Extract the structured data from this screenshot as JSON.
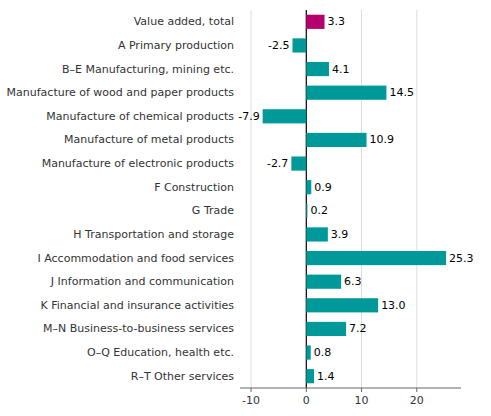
{
  "chart_data": {
    "type": "bar",
    "orientation": "horizontal",
    "categories": [
      "Value added, total",
      "A Primary production",
      "B–E Manufacturing, mining etc.",
      "Manufacture of wood and paper products",
      "Manufacture of chemical products",
      "Manufacture of metal products",
      "Manufacture of electronic products",
      "F Construction",
      "G Trade",
      "H Transportation and storage",
      "I Accommodation and food services",
      "J Information and communication",
      "K Financial and insurance activities",
      "M–N Business-to-business services",
      "O–Q Education, health etc.",
      "R–T Other services"
    ],
    "values": [
      3.3,
      -2.5,
      4.1,
      14.5,
      -7.9,
      10.9,
      -2.7,
      0.9,
      0.2,
      3.9,
      25.3,
      6.3,
      13.0,
      7.2,
      0.8,
      1.4
    ],
    "value_labels": [
      "3.3",
      "-2.5",
      "4.1",
      "14.5",
      "-7.9",
      "10.9",
      "-2.7",
      "0.9",
      "0.2",
      "3.9",
      "25.3",
      "6.3",
      "13.0",
      "7.2",
      "0.8",
      "1.4"
    ],
    "colors": [
      "#b5006e",
      "#009999",
      "#009999",
      "#009999",
      "#009999",
      "#009999",
      "#009999",
      "#009999",
      "#009999",
      "#009999",
      "#009999",
      "#009999",
      "#009999",
      "#009999",
      "#009999",
      "#009999"
    ],
    "xlim": [
      -12,
      28
    ],
    "xticks": [
      -10,
      0,
      10,
      20
    ],
    "grid": true,
    "data_labels": true
  }
}
